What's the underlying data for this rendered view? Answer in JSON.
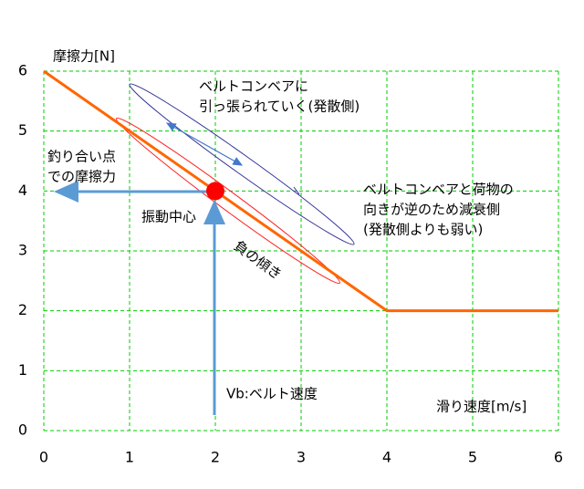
{
  "chart_data": {
    "type": "line",
    "y_label": "摩擦力[N]",
    "x_label": "滑り速度[m/s]",
    "x": [
      0,
      4,
      6
    ],
    "series": [
      {
        "color": "#ff6600",
        "values": [
          6,
          2,
          2
        ]
      }
    ],
    "marker": {
      "x": 2,
      "y": 4,
      "color": "#ff0000"
    },
    "xlim": [
      0,
      6
    ],
    "ylim": [
      0,
      6
    ],
    "xticks": [
      0,
      1,
      2,
      3,
      4,
      5,
      6
    ],
    "yticks": [
      0,
      1,
      2,
      3,
      4,
      5,
      6
    ],
    "grid": true,
    "annotations": {
      "diverge": [
        "ベルトコンベアに",
        "引っ張られていく(発散側)"
      ],
      "balance": [
        "釣り合い点",
        "での摩擦力"
      ],
      "center": "振動中心",
      "slope": "負の傾き",
      "damp": [
        "ベルトコンベアと荷物の",
        "向きが逆のため減衰側",
        "(発散側よりも弱い)"
      ],
      "belt": "Vb:ベルト速度"
    }
  }
}
